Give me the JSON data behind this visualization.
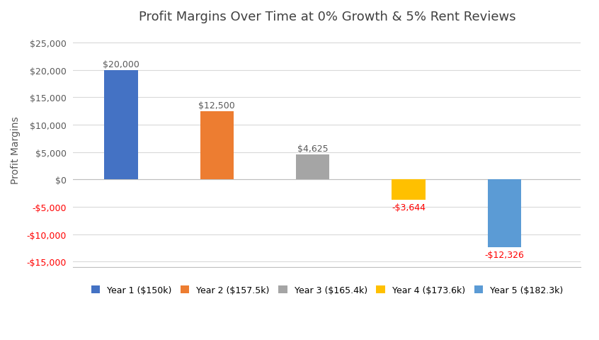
{
  "title": "Profit Margins Over Time at 0% Growth & 5% Rent Reviews",
  "ylabel": "Profit Margins",
  "categories": [
    "Year 1",
    "Year 2",
    "Year 3",
    "Year 4",
    "Year 5"
  ],
  "values": [
    20000,
    12500,
    4625,
    -3644,
    -12326
  ],
  "bar_colors": [
    "#4472C4",
    "#ED7D31",
    "#A5A5A5",
    "#FFC000",
    "#5B9BD5"
  ],
  "value_labels": [
    "$20,000",
    "$12,500",
    "$4,625",
    "-$3,644",
    "-$12,326"
  ],
  "negative_label_color": "#FF0000",
  "positive_label_color": "#595959",
  "legend_labels": [
    "Year 1 ($150k)",
    "Year 2 ($157.5k)",
    "Year 3 ($165.4k)",
    "Year 4 ($173.6k)",
    "Year 5 ($182.3k)"
  ],
  "ylim": [
    -16000,
    27000
  ],
  "yticks": [
    -15000,
    -10000,
    -5000,
    0,
    5000,
    10000,
    15000,
    20000,
    25000
  ],
  "background_color": "#FFFFFF",
  "grid_color": "#D9D9D9",
  "title_fontsize": 13,
  "axis_label_fontsize": 10,
  "tick_fontsize": 9,
  "legend_fontsize": 9,
  "bar_width": 0.35
}
